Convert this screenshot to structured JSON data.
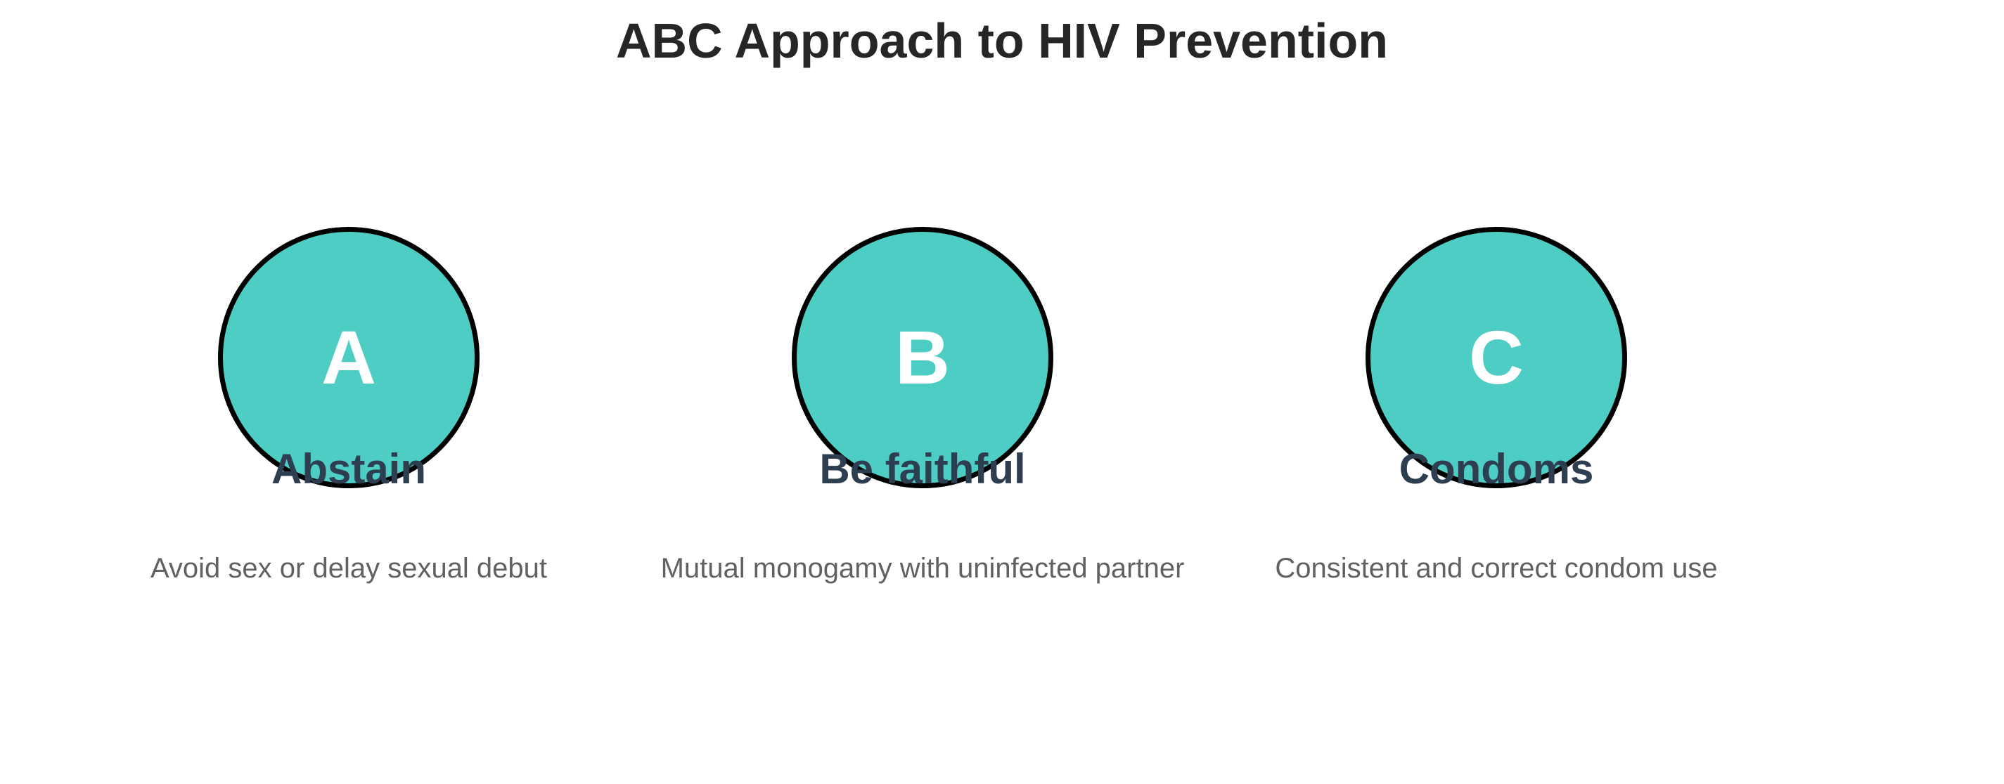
{
  "title": "ABC Approach to HIV Prevention",
  "colors": {
    "circle_fill": "#4ecdc4",
    "circle_stroke": "#000000",
    "letter": "#ffffff",
    "label": "#2d3e50",
    "description": "#616161",
    "title": "#262626"
  },
  "items": [
    {
      "letter": "A",
      "label": "Abstain",
      "description": "Avoid sex or delay sexual debut"
    },
    {
      "letter": "B",
      "label": "Be faithful",
      "description": "Mutual monogamy with uninfected partner"
    },
    {
      "letter": "C",
      "label": "Condoms",
      "description": "Consistent and correct condom use"
    }
  ]
}
